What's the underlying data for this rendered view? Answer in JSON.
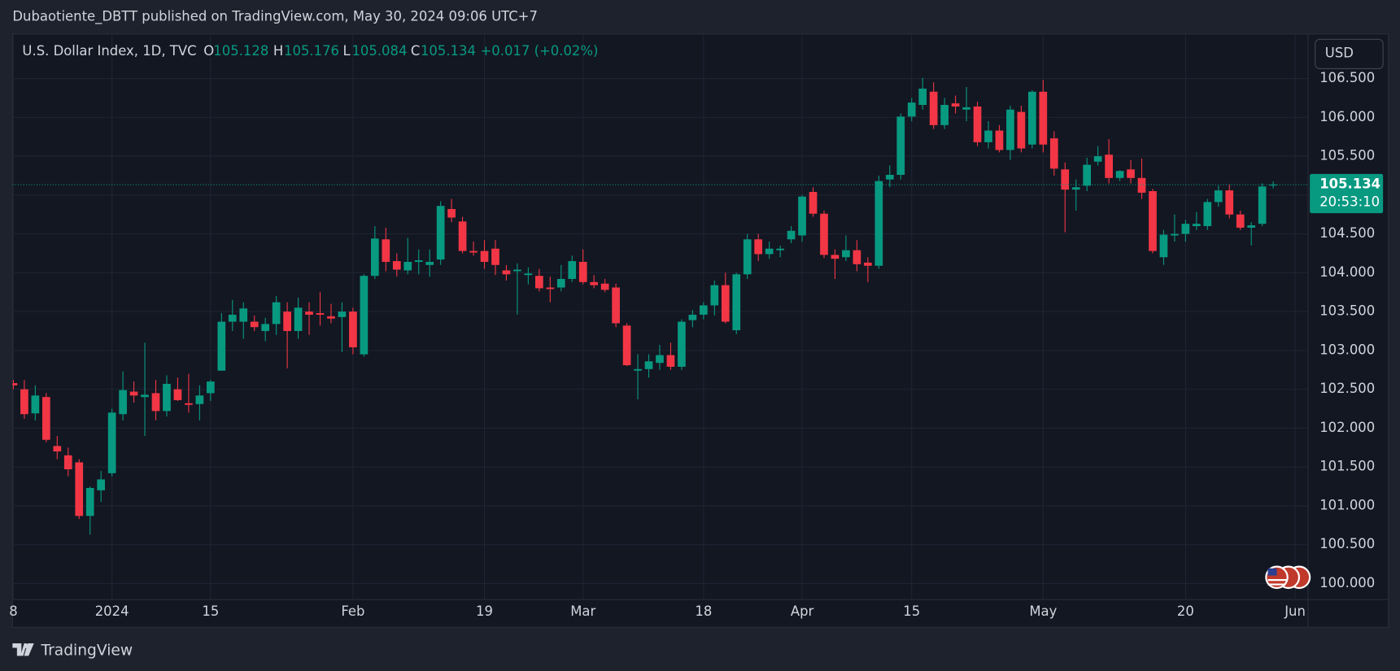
{
  "header": {
    "publisher": "Dubaotiente_DBTT published on TradingView.com, May 30, 2024 09:06 UTC+7"
  },
  "chart_data": {
    "type": "candlestick",
    "title": "U.S. Dollar Index, 1D, TVC",
    "legend_labels": {
      "open": "O",
      "high": "H",
      "low": "L",
      "close": "C"
    },
    "change": "+0.017 (+0.02%)",
    "countdown": "20:53:10",
    "currency": "USD",
    "up_color": "#089981",
    "down_color": "#f23645",
    "open": [
      102.58,
      102.5,
      102.19,
      102.4,
      101.77,
      101.65,
      101.56,
      100.87,
      101.2,
      101.42,
      102.18,
      102.47,
      102.4,
      102.45,
      102.22,
      102.5,
      102.32,
      102.31,
      102.45,
      102.74,
      103.37,
      103.37,
      103.37,
      103.25,
      103.34,
      103.5,
      103.25,
      103.5,
      103.48,
      103.44,
      103.43,
      103.5,
      102.95,
      103.96,
      104.43,
      104.15,
      104.03,
      104.14,
      104.1,
      104.17,
      104.82,
      104.66,
      104.28,
      104.28,
      104.31,
      104.03,
      104.02,
      103.97,
      103.96,
      103.81,
      103.81,
      103.92,
      104.14,
      103.88,
      103.86,
      103.81,
      103.32,
      102.74,
      102.76,
      102.84,
      102.94,
      102.79,
      103.39,
      103.46,
      103.58,
      103.84,
      103.26,
      103.98,
      104.43,
      104.24,
      104.29,
      104.43,
      104.48,
      105.04,
      104.76,
      104.23,
      104.2,
      104.29,
      104.13,
      104.09,
      105.2,
      105.26,
      106.01,
      106.16,
      106.33,
      105.9,
      106.18,
      106.1,
      106.14,
      105.68,
      105.83,
      105.58,
      106.07,
      105.65,
      106.33,
      105.73,
      105.33,
      105.07,
      105.12,
      105.43,
      105.52,
      105.22,
      105.33,
      105.22,
      105.05,
      104.2,
      104.48,
      104.5,
      104.6,
      104.6,
      104.91,
      105.06,
      104.75,
      104.58,
      104.63,
      105.128
    ],
    "high": [
      102.62,
      102.62,
      102.55,
      102.45,
      101.9,
      101.75,
      101.6,
      101.25,
      101.45,
      102.25,
      102.73,
      102.6,
      103.1,
      102.62,
      102.68,
      102.65,
      102.7,
      102.55,
      102.62,
      103.48,
      103.65,
      103.62,
      103.45,
      103.42,
      103.7,
      103.62,
      103.68,
      103.62,
      103.75,
      103.6,
      103.62,
      103.55,
      103.98,
      104.6,
      104.58,
      104.25,
      104.45,
      104.3,
      104.3,
      104.92,
      104.95,
      104.72,
      104.4,
      104.42,
      104.42,
      104.1,
      104.12,
      104.07,
      104.05,
      103.95,
      104.1,
      104.22,
      104.3,
      103.97,
      103.92,
      103.86,
      103.35,
      102.95,
      102.95,
      103.07,
      103.1,
      103.4,
      103.52,
      103.62,
      103.9,
      104.0,
      104.0,
      104.5,
      104.5,
      104.4,
      104.35,
      104.6,
      105.0,
      105.1,
      104.8,
      104.3,
      104.48,
      104.42,
      104.2,
      105.25,
      105.38,
      106.05,
      106.25,
      106.51,
      106.45,
      106.25,
      106.28,
      106.39,
      106.2,
      105.95,
      105.9,
      106.15,
      106.15,
      106.35,
      106.48,
      105.82,
      105.42,
      105.2,
      105.48,
      105.63,
      105.72,
      105.32,
      105.45,
      105.47,
      105.08,
      104.55,
      104.75,
      104.68,
      104.78,
      104.95,
      105.12,
      105.14,
      104.8,
      104.65,
      105.15,
      105.176
    ],
    "low": [
      102.5,
      102.12,
      102.1,
      101.82,
      101.6,
      101.38,
      100.83,
      100.63,
      101.05,
      101.38,
      102.1,
      102.33,
      101.9,
      102.1,
      102.15,
      102.35,
      102.2,
      102.1,
      102.35,
      102.74,
      103.25,
      103.15,
      103.25,
      103.12,
      103.2,
      102.77,
      103.15,
      103.2,
      103.32,
      103.35,
      102.98,
      102.95,
      102.92,
      103.92,
      104.02,
      103.95,
      103.98,
      103.98,
      103.95,
      104.1,
      104.65,
      104.25,
      104.22,
      104.05,
      103.97,
      103.9,
      103.46,
      103.85,
      103.76,
      103.62,
      103.76,
      103.88,
      103.85,
      103.8,
      103.75,
      103.3,
      102.8,
      102.37,
      102.65,
      102.75,
      102.75,
      102.75,
      103.3,
      103.4,
      103.45,
      103.35,
      103.21,
      103.92,
      104.15,
      104.18,
      104.2,
      104.38,
      104.4,
      104.72,
      104.19,
      103.92,
      104.15,
      104.02,
      103.88,
      104.05,
      105.1,
      105.2,
      105.95,
      106.1,
      105.85,
      105.85,
      106.05,
      105.95,
      105.63,
      105.6,
      105.55,
      105.45,
      105.55,
      105.6,
      105.55,
      105.25,
      104.52,
      104.8,
      105.05,
      105.38,
      105.15,
      105.18,
      105.15,
      104.95,
      104.25,
      104.1,
      104.4,
      104.4,
      104.55,
      104.55,
      104.85,
      104.7,
      104.55,
      104.35,
      104.6,
      105.084
    ],
    "close": [
      102.55,
      102.18,
      102.42,
      101.85,
      101.7,
      101.47,
      100.87,
      101.23,
      101.34,
      102.2,
      102.49,
      102.42,
      102.43,
      102.22,
      102.57,
      102.36,
      102.3,
      102.42,
      102.6,
      103.37,
      103.46,
      103.54,
      103.3,
      103.34,
      103.62,
      103.25,
      103.55,
      103.46,
      103.46,
      103.41,
      103.5,
      103.04,
      103.96,
      104.44,
      104.14,
      104.04,
      104.14,
      104.16,
      104.14,
      104.86,
      104.71,
      104.28,
      104.26,
      104.14,
      104.1,
      103.98,
      104.04,
      103.99,
      103.8,
      103.79,
      103.92,
      104.15,
      103.88,
      103.84,
      103.78,
      103.35,
      102.81,
      102.76,
      102.86,
      102.94,
      102.79,
      103.37,
      103.46,
      103.58,
      103.84,
      103.37,
      103.98,
      104.43,
      104.24,
      104.31,
      104.31,
      104.54,
      104.98,
      104.76,
      104.23,
      104.18,
      104.29,
      104.11,
      104.09,
      105.18,
      105.26,
      106.01,
      106.19,
      106.37,
      105.9,
      106.16,
      106.14,
      106.13,
      105.68,
      105.83,
      105.58,
      106.1,
      105.6,
      106.33,
      105.65,
      105.34,
      105.07,
      105.1,
      105.39,
      105.5,
      105.22,
      105.31,
      105.22,
      105.03,
      104.28,
      104.49,
      104.5,
      104.63,
      104.63,
      104.91,
      105.06,
      104.75,
      104.58,
      104.61,
      105.11,
      105.134
    ],
    "xlim": [
      -0.08,
      118.18
    ],
    "xticks": [
      {
        "value": 0,
        "label": "8"
      },
      {
        "value": 9,
        "label": "2024"
      },
      {
        "value": 18,
        "label": "15"
      },
      {
        "value": 31,
        "label": "Feb"
      },
      {
        "value": 43,
        "label": "19"
      },
      {
        "value": 52,
        "label": "Mar"
      },
      {
        "value": 63,
        "label": "18"
      },
      {
        "value": 72,
        "label": "Apr"
      },
      {
        "value": 82,
        "label": "15"
      },
      {
        "value": 94,
        "label": "May"
      },
      {
        "value": 107,
        "label": "20"
      },
      {
        "value": 117,
        "label": "Jun"
      }
    ],
    "ylim": [
      99.793,
      107.074
    ],
    "yticks": [
      {
        "value": 100,
        "label": "100.000"
      },
      {
        "value": 100.5,
        "label": "100.500"
      },
      {
        "value": 101,
        "label": "101.000"
      },
      {
        "value": 101.5,
        "label": "101.500"
      },
      {
        "value": 102,
        "label": "102.000"
      },
      {
        "value": 102.5,
        "label": "102.500"
      },
      {
        "value": 103,
        "label": "103.000"
      },
      {
        "value": 103.5,
        "label": "103.500"
      },
      {
        "value": 104,
        "label": "104.000"
      },
      {
        "value": 104.5,
        "label": "104.500"
      },
      {
        "value": 105,
        "label": "105.000"
      },
      {
        "value": 105.5,
        "label": "105.500"
      },
      {
        "value": 106,
        "label": "106.000"
      },
      {
        "value": 106.5,
        "label": "106.500"
      }
    ],
    "grid": true
  },
  "footer": {
    "brand": "TradingView"
  }
}
